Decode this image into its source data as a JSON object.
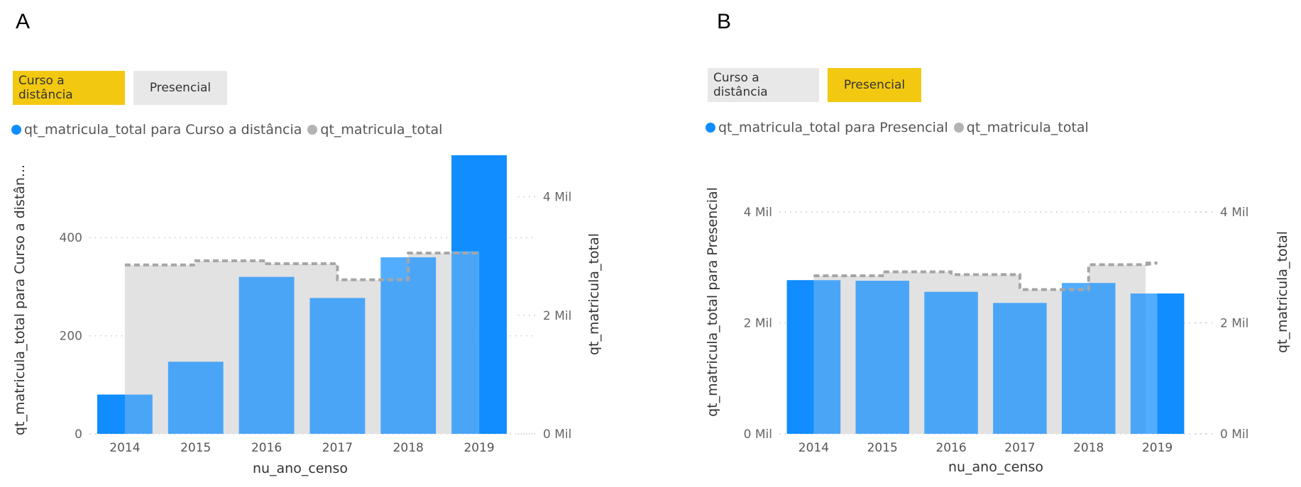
{
  "panels": [
    {
      "letter": "A",
      "slicer": [
        {
          "label": "Curso a distância",
          "selected": true
        },
        {
          "label": "Presencial",
          "selected": false
        }
      ],
      "legend": [
        {
          "label": "qt_matricula_total para Curso a distância",
          "color": "#118dff"
        },
        {
          "label": "qt_matricula_total",
          "color": "#b3b3b3"
        }
      ]
    },
    {
      "letter": "B",
      "slicer": [
        {
          "label": "Curso a distância",
          "selected": false
        },
        {
          "label": "Presencial",
          "selected": true
        }
      ],
      "legend": [
        {
          "label": "qt_matricula_total para Presencial",
          "color": "#118dff"
        },
        {
          "label": "qt_matricula_total",
          "color": "#b3b3b3"
        }
      ]
    }
  ],
  "chart_data": [
    {
      "type": "bar",
      "categories": [
        "2014",
        "2015",
        "2016",
        "2017",
        "2018",
        "2019"
      ],
      "series": [
        {
          "name": "qt_matricula_total para Curso a distância",
          "values": [
            80,
            147,
            320,
            277,
            360,
            568
          ],
          "color": "#118dff"
        },
        {
          "name": "qt_matricula_total",
          "values": [
            2850,
            2920,
            2870,
            2600,
            3050,
            3080
          ],
          "color": "#b3b3b3",
          "style": "area-step-dashed"
        }
      ],
      "xlabel": "nu_ano_censo",
      "ylabel": "qt_matricula_total para Curso a distân...",
      "ylabel_right": "qt_matricula_total",
      "ylim": [
        0,
        568
      ],
      "ylim_right": [
        0,
        4700
      ],
      "yticks": [
        {
          "value": 0,
          "label": "0"
        },
        {
          "value": 200,
          "label": "200"
        },
        {
          "value": 400,
          "label": "400"
        }
      ],
      "yticks_right": [
        {
          "value": 0,
          "label": "0 Mil"
        },
        {
          "value": 2000,
          "label": "2 Mil"
        },
        {
          "value": 4000,
          "label": "4 Mil"
        }
      ],
      "grid": true
    },
    {
      "type": "bar",
      "categories": [
        "2014",
        "2015",
        "2016",
        "2017",
        "2018",
        "2019"
      ],
      "series": [
        {
          "name": "qt_matricula_total para Presencial",
          "values": [
            2770,
            2760,
            2560,
            2360,
            2720,
            2530
          ],
          "color": "#118dff"
        },
        {
          "name": "qt_matricula_total",
          "values": [
            2850,
            2920,
            2870,
            2600,
            3050,
            3080
          ],
          "color": "#b3b3b3",
          "style": "area-step-dashed"
        }
      ],
      "xlabel": "nu_ano_censo",
      "ylabel": "qt_matricula_total para Presencial",
      "ylabel_right": "qt_matricula_total",
      "ylim": [
        0,
        4000
      ],
      "ylim_right": [
        0,
        4000
      ],
      "yticks": [
        {
          "value": 0,
          "label": "0 Mil"
        },
        {
          "value": 2000,
          "label": "2 Mil"
        },
        {
          "value": 4000,
          "label": "4 Mil"
        }
      ],
      "yticks_right": [
        {
          "value": 0,
          "label": "0 Mil"
        },
        {
          "value": 2000,
          "label": "2 Mil"
        },
        {
          "value": 4000,
          "label": "4 Mil"
        }
      ],
      "grid": true
    }
  ]
}
